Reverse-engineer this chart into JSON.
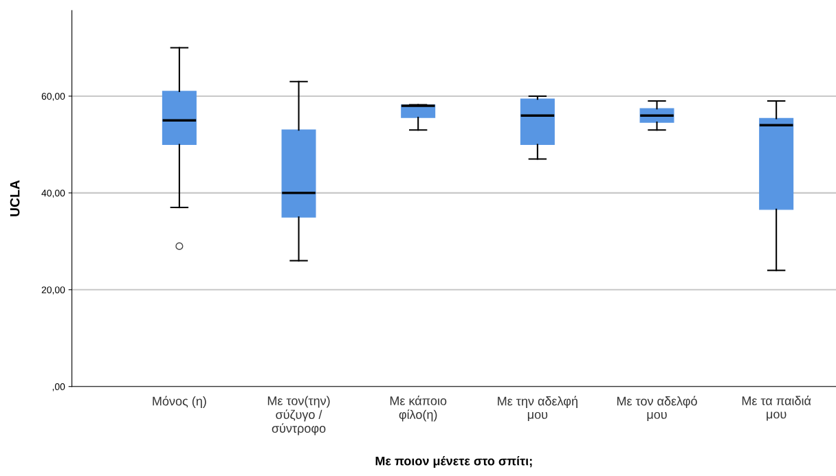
{
  "chart_data": {
    "type": "box",
    "xlabel": "Με ποιον μένετε στο σπίτι;",
    "ylabel": "UCLA",
    "categories": [
      "Μόνος (η)",
      "Με τον(την)\nσύζυγο /\nσύντροφο",
      "Με κάποιο\nφίλο(η)",
      "Με την αδελφή\nμου",
      "Με τον αδελφό\nμου",
      "Με τα παιδιά\nμου"
    ],
    "color": "#5896e3",
    "boxes": [
      {
        "low": 37,
        "q1": 50,
        "median": 55,
        "q3": 61,
        "high": 70,
        "outliers": [
          29
        ]
      },
      {
        "low": 26,
        "q1": 35,
        "median": 40,
        "q3": 53,
        "high": 63
      },
      {
        "low": 53,
        "q1": 55.6,
        "median": 58,
        "q3": 58.2,
        "high": 58.2
      },
      {
        "low": 47,
        "q1": 50,
        "median": 56,
        "q3": 59.4,
        "high": 60
      },
      {
        "low": 53,
        "q1": 54.6,
        "median": 56,
        "q3": 57.4,
        "high": 59
      },
      {
        "low": 24,
        "q1": 36.6,
        "median": 54,
        "q3": 55.4,
        "high": 59
      }
    ],
    "ylim": [
      0,
      77.7
    ],
    "yticks": [
      {
        "value": 0,
        "label": ",00"
      },
      {
        "value": 20,
        "label": "20,00"
      },
      {
        "value": 40,
        "label": "40,00"
      },
      {
        "value": 60,
        "label": "60,00"
      }
    ],
    "grid": "y"
  }
}
